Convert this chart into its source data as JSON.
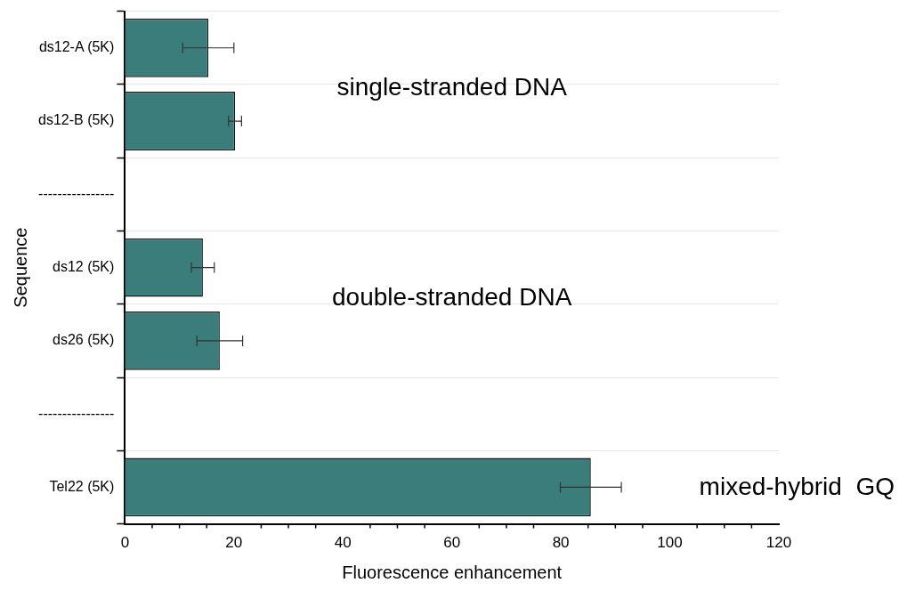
{
  "chart_data": {
    "type": "bar",
    "orientation": "horizontal",
    "xlabel": "Fluorescence enhancement",
    "ylabel": "Sequence",
    "categories": [
      "ds12-A (5K)",
      "ds12-B (5K)",
      "----------------",
      "ds12 (5K)",
      "ds26 (5K)",
      "----------------",
      "Tel22 (5K)"
    ],
    "values": [
      15.3,
      20.2,
      null,
      14.3,
      17.4,
      null,
      85.5
    ],
    "errors": [
      4.7,
      1.2,
      null,
      2.1,
      4.2,
      null,
      5.6
    ],
    "color": "#3b7d7a",
    "xlim": [
      0,
      120
    ],
    "xticks": [
      0,
      20,
      40,
      60,
      80,
      100,
      120
    ],
    "grid": "y",
    "legend": false,
    "annotations": [
      "single-stranded DNA",
      "double-stranded DNA",
      "mixed-hybrid  GQ"
    ]
  }
}
